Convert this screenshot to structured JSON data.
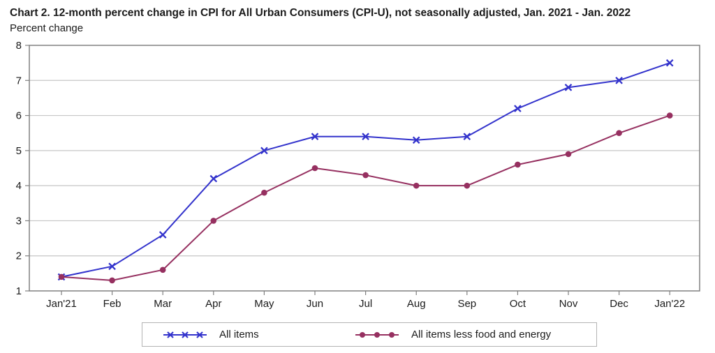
{
  "header": {
    "title": "Chart 2. 12-month percent change in CPI for All Urban Consumers (CPI-U), not seasonally adjusted, Jan. 2021 - Jan. 2022",
    "subtitle": "Percent change"
  },
  "chart_data": {
    "type": "line",
    "x": [
      "Jan'21",
      "Feb",
      "Mar",
      "Apr",
      "May",
      "Jun",
      "Jul",
      "Aug",
      "Sep",
      "Oct",
      "Nov",
      "Dec",
      "Jan'22"
    ],
    "series": [
      {
        "name": "All items",
        "marker": "x",
        "color": "#3333cc",
        "values": [
          1.4,
          1.7,
          2.6,
          4.2,
          5.0,
          5.4,
          5.4,
          5.3,
          5.4,
          6.2,
          6.8,
          7.0,
          7.5
        ]
      },
      {
        "name": "All items less food and energy",
        "marker": "circle",
        "color": "#963060",
        "values": [
          1.4,
          1.3,
          1.6,
          3.0,
          3.8,
          4.5,
          4.3,
          4.0,
          4.0,
          4.6,
          4.9,
          5.5,
          6.0
        ]
      }
    ],
    "ylabel": "Percent change",
    "ylim": [
      1,
      8
    ],
    "yticks": [
      1,
      2,
      3,
      4,
      5,
      6,
      7,
      8
    ],
    "grid": "horizontal",
    "legend_position": "bottom"
  },
  "colors": {
    "grid": "#c6c6c6",
    "plot_border": "#808080",
    "tick": "#808080",
    "text": "#1a1a1a",
    "legend_border": "#b3b3b3"
  }
}
